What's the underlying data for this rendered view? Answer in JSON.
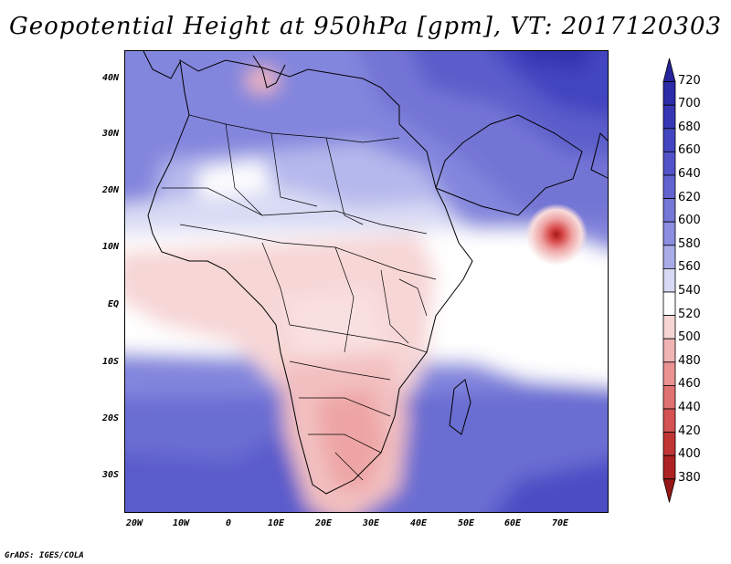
{
  "title": "Geopotential Height at 950hPa [gpm], VT: 2017120303",
  "credit": "GrADS: IGES/COLA",
  "lat_labels": [
    "40N",
    "30N",
    "20N",
    "10N",
    "EQ",
    "10S",
    "20S",
    "30S"
  ],
  "lat_values": [
    40,
    30,
    20,
    10,
    0,
    -10,
    -20,
    -30
  ],
  "lon_labels": [
    "20W",
    "10W",
    "0",
    "10E",
    "20E",
    "30E",
    "40E",
    "50E",
    "60E",
    "70E"
  ],
  "lon_values": [
    -20,
    -10,
    0,
    10,
    20,
    30,
    40,
    50,
    60,
    70
  ],
  "map_extent": {
    "lon_min": -22,
    "lon_max": 80,
    "lat_min": -36,
    "lat_max": 45
  },
  "colorbar": {
    "levels": [
      720,
      700,
      680,
      660,
      640,
      620,
      600,
      580,
      560,
      540,
      520,
      500,
      480,
      460,
      440,
      420,
      400,
      380
    ],
    "colors": [
      "#25239b",
      "#2d2ca8",
      "#3737b6",
      "#4445c0",
      "#5253c8",
      "#6263cf",
      "#7577d6",
      "#8a8de0",
      "#a9ace9",
      "#d8daf4",
      "#ffffff",
      "#f6d5d5",
      "#f0b4b4",
      "#ea9292",
      "#e07272",
      "#d45252",
      "#c23535",
      "#ad2323",
      "#961717"
    ]
  }
}
